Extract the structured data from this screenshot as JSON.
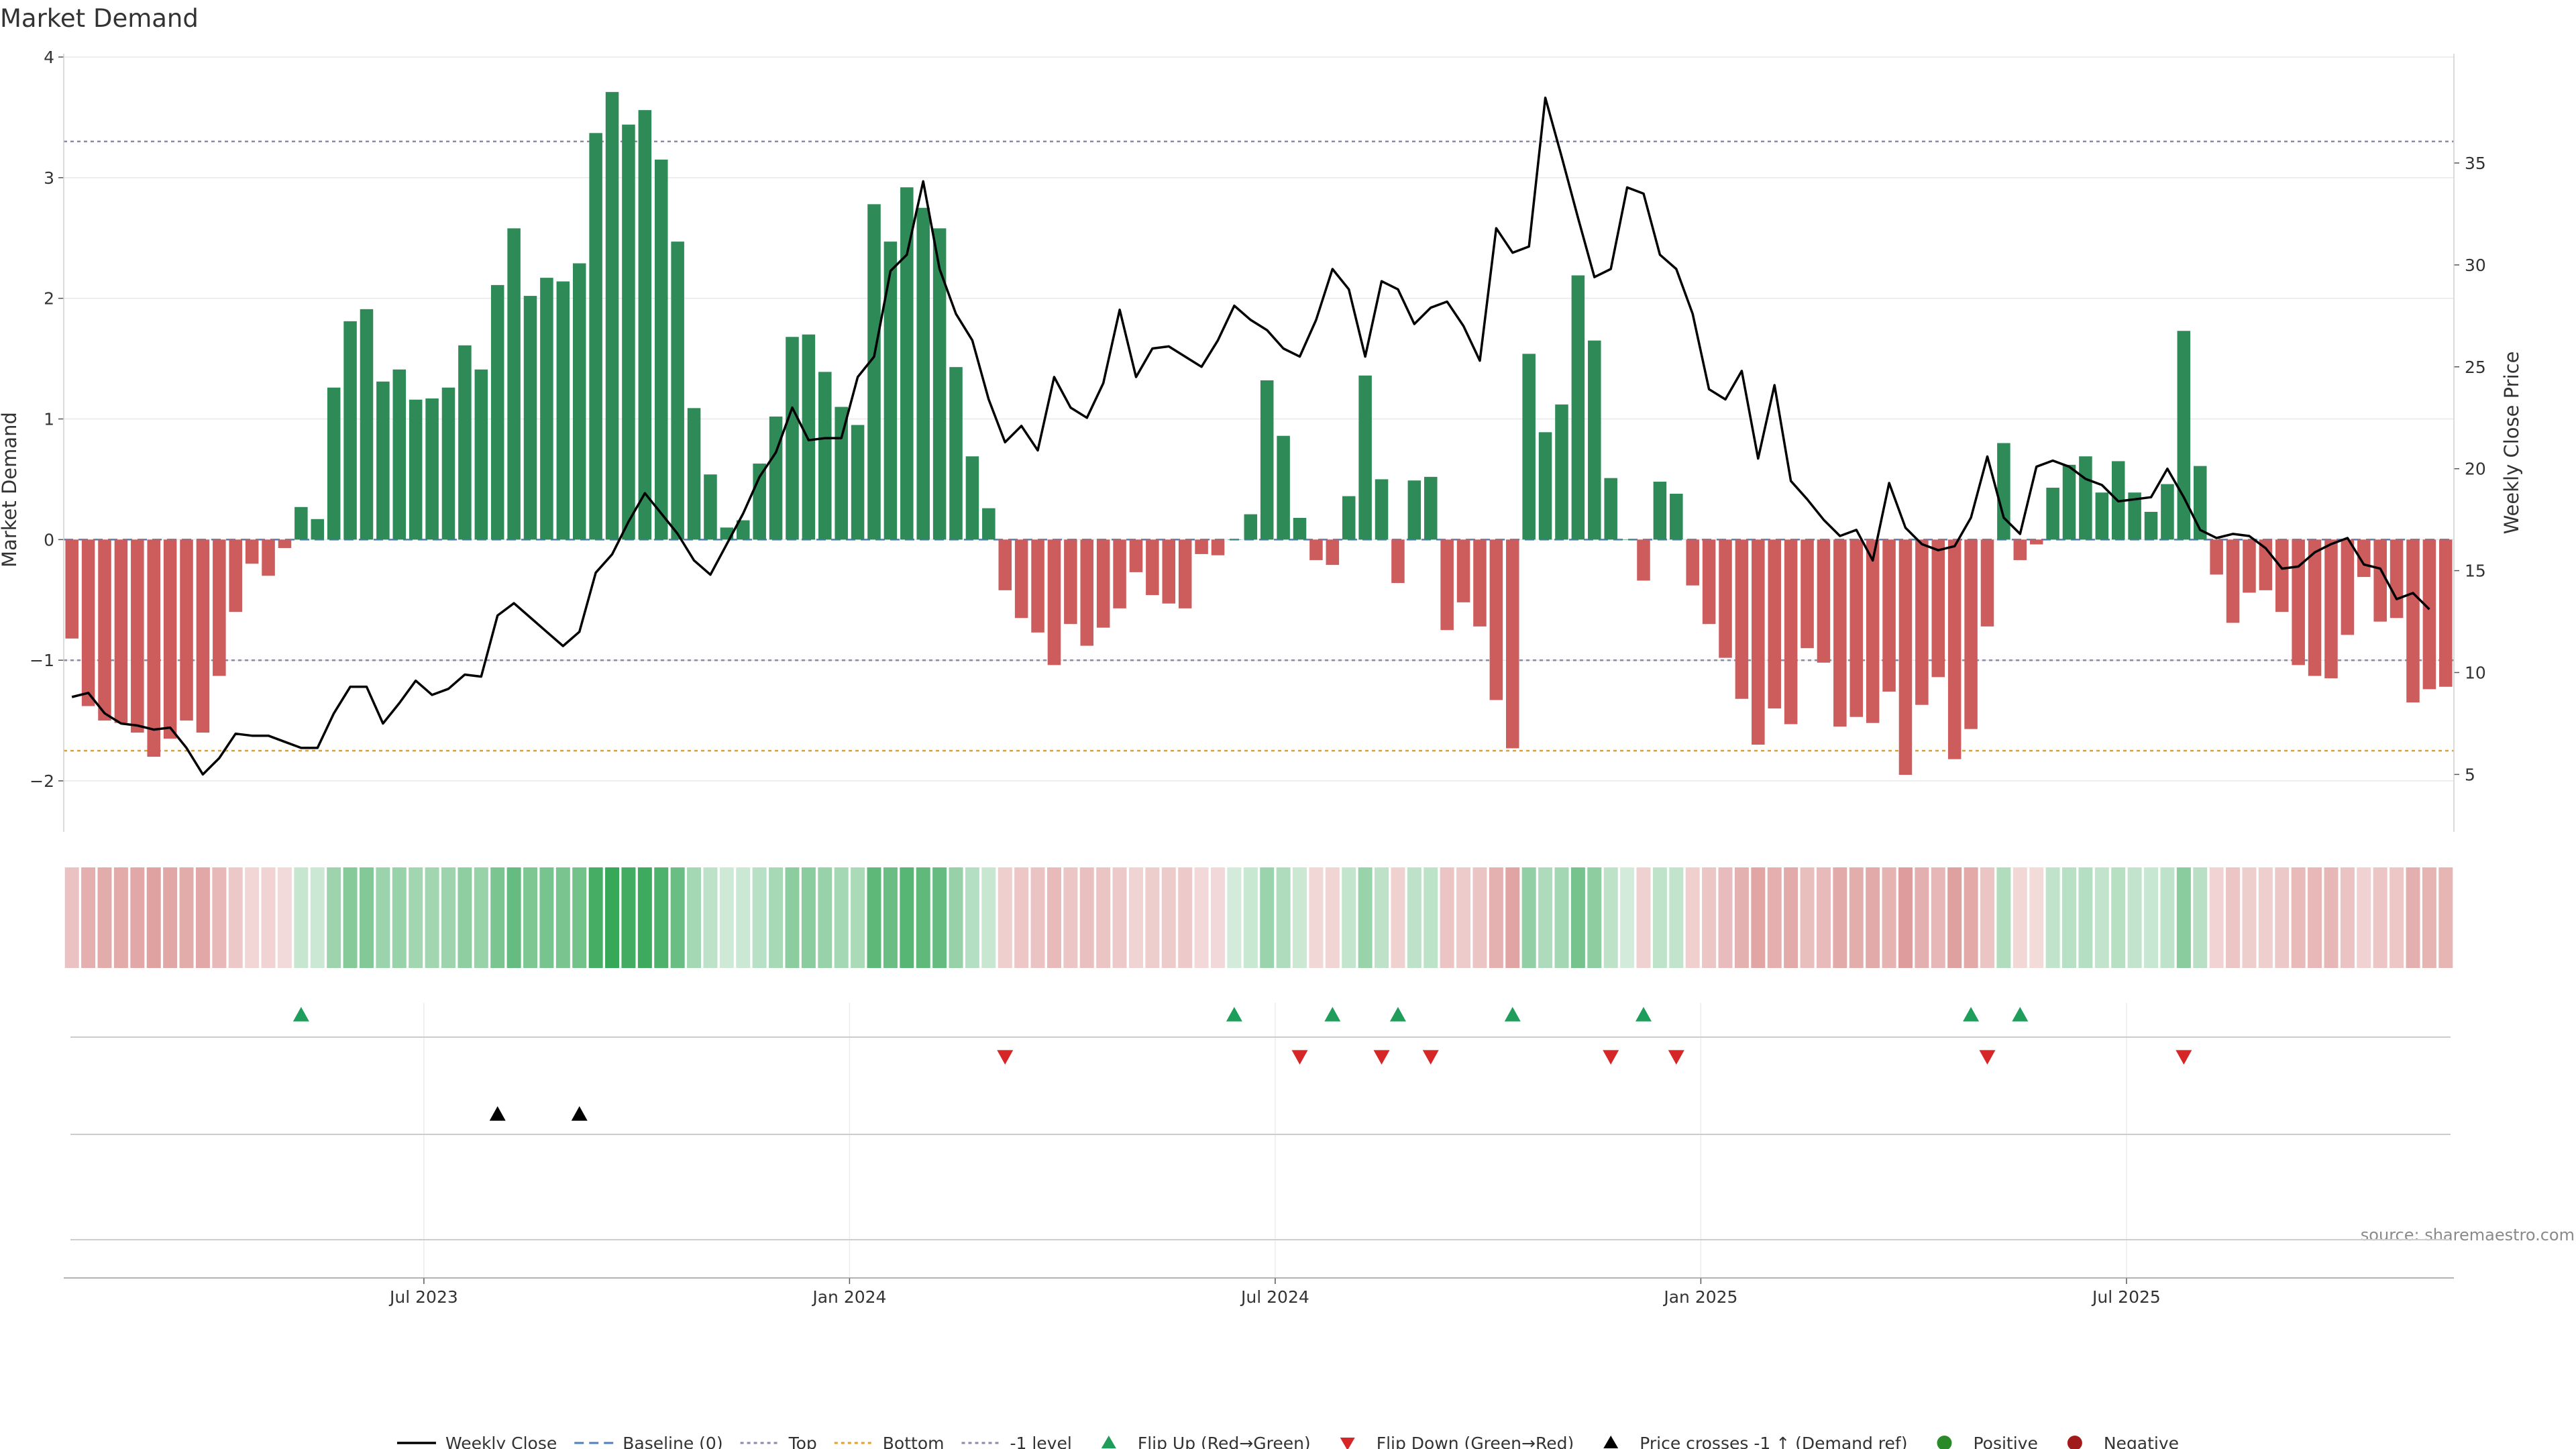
{
  "chart_data": {
    "type": "bar",
    "title": "Market Demand",
    "ylabel_left": "Market Demand",
    "ylabel_right": "Weekly Close Price",
    "ylim_left": [
      -2.2,
      4.0
    ],
    "ylim_right": [
      3.5,
      40.2
    ],
    "yticks_left": [
      {
        "v": -2,
        "label": "−2"
      },
      {
        "v": -1,
        "label": "−1"
      },
      {
        "v": 0,
        "label": "0"
      },
      {
        "v": 1,
        "label": "1"
      },
      {
        "v": 2,
        "label": "2"
      },
      {
        "v": 3,
        "label": "3"
      },
      {
        "v": 4,
        "label": "4"
      }
    ],
    "yticks_right": [
      {
        "v": 5,
        "label": "5"
      },
      {
        "v": 10,
        "label": "10"
      },
      {
        "v": 15,
        "label": "15"
      },
      {
        "v": 20,
        "label": "20"
      },
      {
        "v": 25,
        "label": "25"
      },
      {
        "v": 30,
        "label": "30"
      },
      {
        "v": 35,
        "label": "35"
      }
    ],
    "xticks": [
      {
        "week": 22,
        "label": "Jul 2023"
      },
      {
        "week": 48,
        "label": "Jan 2024"
      },
      {
        "week": 74,
        "label": "Jul 2024"
      },
      {
        "week": 100,
        "label": "Jan 2025"
      },
      {
        "week": 126,
        "label": "Jul 2025"
      }
    ],
    "reference_lines": {
      "baseline": 0,
      "top": 3.3,
      "bottom": -1.75,
      "minus_one": -1
    },
    "demand": [
      -0.82,
      -1.38,
      -1.5,
      -1.52,
      -1.6,
      -1.8,
      -1.65,
      -1.5,
      -1.6,
      -1.13,
      -0.6,
      -0.2,
      -0.3,
      -0.07,
      0.27,
      0.17,
      1.26,
      1.81,
      1.91,
      1.31,
      1.41,
      1.16,
      1.17,
      1.26,
      1.61,
      1.41,
      2.11,
      2.58,
      2.02,
      2.17,
      2.14,
      2.29,
      3.37,
      3.71,
      3.44,
      3.56,
      3.15,
      2.47,
      1.09,
      0.54,
      0.1,
      0.16,
      0.63,
      1.02,
      1.68,
      1.7,
      1.39,
      1.1,
      0.95,
      2.78,
      2.47,
      2.92,
      2.75,
      2.58,
      1.43,
      0.69,
      0.26,
      -0.42,
      -0.65,
      -0.77,
      -1.04,
      -0.7,
      -0.88,
      -0.73,
      -0.57,
      -0.27,
      -0.46,
      -0.53,
      -0.57,
      -0.12,
      -0.13,
      0,
      0.21,
      1.32,
      0.86,
      0.18,
      -0.17,
      -0.21,
      0.36,
      1.36,
      0.5,
      -0.36,
      0.49,
      0.52,
      -0.75,
      -0.52,
      -0.72,
      -1.33,
      -1.73,
      1.54,
      0.89,
      1.12,
      2.19,
      1.65,
      0.51,
      0,
      -0.34,
      0.48,
      0.38,
      -0.38,
      -0.7,
      -0.98,
      -1.32,
      -1.7,
      -1.4,
      -1.53,
      -0.9,
      -1.02,
      -1.55,
      -1.47,
      -1.52,
      -1.26,
      -1.95,
      -1.37,
      -1.14,
      -1.82,
      -1.57,
      -0.72,
      0.8,
      -0.17,
      -0.04,
      0.43,
      0.62,
      0.69,
      0.39,
      0.65,
      0.39,
      0.23,
      0.46,
      1.73,
      0.61,
      -0.29,
      -0.69,
      -0.44,
      -0.42,
      -0.6,
      -1.04,
      -1.13,
      -1.15,
      -0.79,
      -0.31,
      -0.68,
      -0.65,
      -1.35,
      -1.24,
      -1.22
    ],
    "weekly_close": [
      8.8,
      9.0,
      8.0,
      7.5,
      7.4,
      7.2,
      7.3,
      6.3,
      5.0,
      5.8,
      7.0,
      6.9,
      6.9,
      6.6,
      6.3,
      6.3,
      8.0,
      9.3,
      9.3,
      7.5,
      8.5,
      9.6,
      8.9,
      9.2,
      9.9,
      9.8,
      12.8,
      13.4,
      12.7,
      12.0,
      11.3,
      12.0,
      14.9,
      15.8,
      17.4,
      18.8,
      17.8,
      16.8,
      15.5,
      14.8,
      16.3,
      17.8,
      19.6,
      20.8,
      23.0,
      21.4,
      21.5,
      21.5,
      24.5,
      25.5,
      29.7,
      30.5,
      34.1,
      29.8,
      27.6,
      26.3,
      23.4,
      21.3,
      22.1,
      20.9,
      24.5,
      23.0,
      22.5,
      24.2,
      27.8,
      24.5,
      25.9,
      26.0,
      25.5,
      25.0,
      26.3,
      28.0,
      27.3,
      26.8,
      25.9,
      25.5,
      27.3,
      29.8,
      28.8,
      25.5,
      29.2,
      28.8,
      27.1,
      27.9,
      28.2,
      27.0,
      25.3,
      31.8,
      30.6,
      30.9,
      38.2,
      35.3,
      32.3,
      29.4,
      29.8,
      33.8,
      33.5,
      30.5,
      29.8,
      27.6,
      23.9,
      23.4,
      24.8,
      20.5,
      24.1,
      19.4,
      18.5,
      17.5,
      16.7,
      17.0,
      15.5,
      19.3,
      17.1,
      16.3,
      16.0,
      16.2,
      17.6,
      20.6,
      17.6,
      16.8,
      20.1,
      20.4,
      20.1,
      19.5,
      19.2,
      18.4,
      18.5,
      18.6,
      20.0,
      18.6,
      17.0,
      16.6,
      16.8,
      16.7,
      16.1,
      15.1,
      15.2,
      15.9,
      16.3,
      16.6,
      15.3,
      15.1,
      13.6,
      13.9,
      13.1
    ],
    "bottom_panel_markers": {
      "flip_up_weeks": [
        14,
        71,
        77,
        81,
        88,
        96,
        116,
        119
      ],
      "flip_down_weeks": [
        57,
        75,
        80,
        83,
        94,
        98,
        117,
        129
      ],
      "price_cross_weeks": [
        26,
        31
      ]
    },
    "legend": [
      {
        "key": "weekly_close",
        "label": "Weekly Close"
      },
      {
        "key": "baseline",
        "label": "Baseline (0)"
      },
      {
        "key": "top",
        "label": "Top"
      },
      {
        "key": "bottom",
        "label": "Bottom"
      },
      {
        "key": "minus_one",
        "label": "-1 level"
      },
      {
        "key": "flip_up",
        "label": "Flip Up (Red→Green)"
      },
      {
        "key": "flip_down",
        "label": "Flip Down (Green→Red)"
      },
      {
        "key": "price_cross",
        "label": "Price crosses -1 ↑ (Demand ref)"
      },
      {
        "key": "positive",
        "label": "Positive"
      },
      {
        "key": "negative",
        "label": "Negative"
      }
    ],
    "source": "source: sharemaestro.com",
    "colors": {
      "positive": "#2e8b57",
      "negative": "#cd5c5c",
      "line": "#000000",
      "baseline": "#4f7fbf",
      "top": "#8a8ab0",
      "bottom": "#e0a030",
      "minus_one": "#8a8ab0",
      "flip_up": "#1e9e5a",
      "flip_down": "#d62728",
      "price_cross": "#000000",
      "positive_dot": "#2a8a2a",
      "negative_dot": "#a01c1c"
    }
  }
}
